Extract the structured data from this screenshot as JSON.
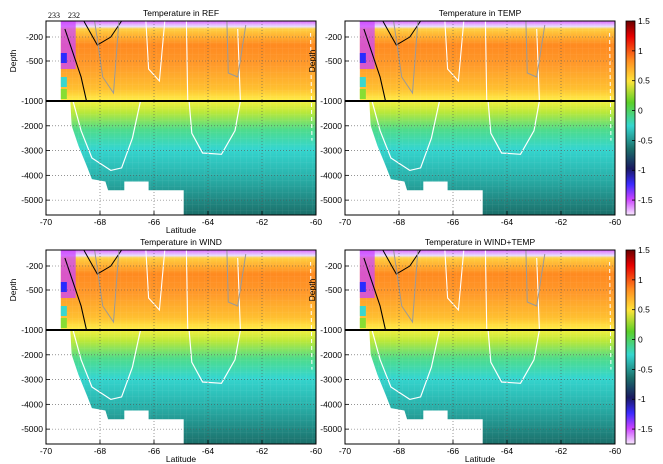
{
  "chart_data": [
    {
      "type": "heatmap",
      "title": "Temperature in REF",
      "xlabel": "Latitude",
      "ylabel": "Depth",
      "xlim": [
        -70,
        -60
      ],
      "xticks": [
        -70,
        -68,
        -66,
        -64,
        -62,
        -60
      ],
      "upper_yticks": [
        -200,
        -500
      ],
      "lower_yticks": [
        -1000,
        -2000,
        -3000,
        -4000,
        -5000
      ],
      "colorbar": null,
      "annotations": [
        "233",
        "232"
      ]
    },
    {
      "type": "heatmap",
      "title": "Temperature in TEMP",
      "xlabel": "",
      "ylabel": "Depth",
      "xlim": [
        -70,
        -60
      ],
      "xticks": [
        -70,
        -68,
        -66,
        -64,
        -62,
        -60
      ],
      "upper_yticks": [
        -200,
        -500
      ],
      "lower_yticks": [
        -1000,
        -2000,
        -3000,
        -4000,
        -5000
      ],
      "colorbar": {
        "range": [
          -1.75,
          1.5
        ],
        "ticks": [
          "1.5",
          "1",
          "0.5",
          "0",
          "-0.5",
          "-1",
          "-1.5"
        ]
      },
      "annotations": []
    },
    {
      "type": "heatmap",
      "title": "Temperature in WIND",
      "xlabel": "Latitude",
      "ylabel": "Depth",
      "xlim": [
        -70,
        -60
      ],
      "xticks": [
        -70,
        -68,
        -66,
        -64,
        -62,
        -60
      ],
      "upper_yticks": [
        -200,
        -500
      ],
      "lower_yticks": [
        -1000,
        -2000,
        -3000,
        -4000,
        -5000
      ],
      "colorbar": null,
      "annotations": []
    },
    {
      "type": "heatmap",
      "title": "Temperature in WIND+TEMP",
      "xlabel": "Latitude",
      "ylabel": "Depth",
      "xlim": [
        -70,
        -60
      ],
      "xticks": [
        -70,
        -68,
        -66,
        -64,
        -62,
        -60
      ],
      "upper_yticks": [
        -200,
        -500
      ],
      "lower_yticks": [
        -1000,
        -2000,
        -3000,
        -4000,
        -5000
      ],
      "colorbar": {
        "range": [
          -1.75,
          1.5
        ],
        "ticks": [
          "1.5",
          "1",
          "0.5",
          "0",
          "-0.5",
          "-1",
          "-1.5"
        ]
      },
      "annotations": []
    }
  ],
  "colors": {
    "warm_core": "#ff7a1a",
    "mid": "#ffe43a",
    "cyan": "#35d6cf",
    "deep": "#1f8a85",
    "surface": "#cc55ff",
    "white_contour": "#ffffff",
    "black_contour": "#000000",
    "grey_contour": "#9a9a9a"
  }
}
